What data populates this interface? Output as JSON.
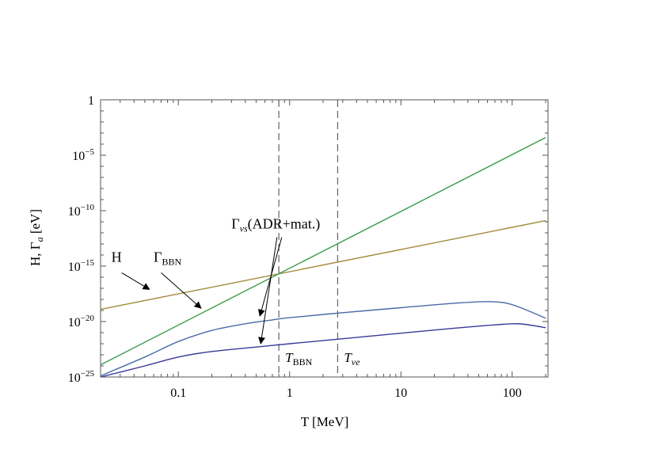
{
  "chart_data": {
    "type": "line",
    "title": "",
    "xlabel": "T [MeV]",
    "ylabel_parts": {
      "main": "H, Γ",
      "sub": "a",
      "tail": " [eV]"
    },
    "xscale": "log",
    "yscale": "log",
    "xlim": [
      0.02,
      210
    ],
    "ylim": [
      1e-25,
      1
    ],
    "x_ticks": [
      {
        "value": 0.1,
        "label": "0.1"
      },
      {
        "value": 1,
        "label": "1"
      },
      {
        "value": 10,
        "label": "10"
      },
      {
        "value": 100,
        "label": "100"
      }
    ],
    "y_ticks": [
      {
        "exp": 0,
        "label": "1",
        "sup": ""
      },
      {
        "exp": -5,
        "label": "10",
        "sup": "−5"
      },
      {
        "exp": -10,
        "label": "10",
        "sup": "−10"
      },
      {
        "exp": -15,
        "label": "10",
        "sup": "−15"
      },
      {
        "exp": -20,
        "label": "10",
        "sup": "−20"
      },
      {
        "exp": -25,
        "label": "10",
        "sup": "−25"
      }
    ],
    "series": [
      {
        "name": "H",
        "color": "#a08a3a",
        "points": [
          [
            0.02,
            -18.9
          ],
          [
            200,
            -10.9
          ]
        ]
      },
      {
        "name": "Γ_BBN",
        "color": "#3a9a4a",
        "points": [
          [
            0.02,
            -23.9
          ],
          [
            200,
            -3.4
          ]
        ]
      },
      {
        "name": "Γ_vs (ADR+mat.) upper",
        "color": "#4a6aa8",
        "points": [
          [
            0.02,
            -24.9
          ],
          [
            0.05,
            -23.2
          ],
          [
            0.1,
            -21.8
          ],
          [
            0.2,
            -20.8
          ],
          [
            0.4,
            -20.2
          ],
          [
            0.7,
            -19.85
          ],
          [
            1,
            -19.65
          ],
          [
            3,
            -19.2
          ],
          [
            10,
            -18.75
          ],
          [
            30,
            -18.35
          ],
          [
            60,
            -18.2
          ],
          [
            90,
            -18.35
          ],
          [
            130,
            -18.9
          ],
          [
            200,
            -19.7
          ]
        ]
      },
      {
        "name": "Γ_vs (ADR+mat.) lower",
        "color": "#3a3a9a",
        "points": [
          [
            0.02,
            -25.0
          ],
          [
            0.05,
            -24.0
          ],
          [
            0.1,
            -23.2
          ],
          [
            0.2,
            -22.7
          ],
          [
            0.5,
            -22.3
          ],
          [
            1,
            -22.0
          ],
          [
            3,
            -21.55
          ],
          [
            10,
            -21.05
          ],
          [
            30,
            -20.6
          ],
          [
            60,
            -20.35
          ],
          [
            100,
            -20.2
          ],
          [
            130,
            -20.25
          ],
          [
            200,
            -20.55
          ]
        ]
      }
    ],
    "vlines": [
      {
        "x": 0.8,
        "label": "T",
        "sub": "BBN"
      },
      {
        "x": 2.7,
        "label": "T",
        "sub": "νe"
      }
    ],
    "annotations": [
      {
        "text": "H",
        "sub": "",
        "x": 0.025,
        "y": -14.6,
        "arrows": [
          {
            "from": [
              0.031,
              -15.6
            ],
            "to": [
              0.055,
              -17.1
            ]
          }
        ]
      },
      {
        "text": "Γ",
        "sub": "BBN",
        "x": 0.06,
        "y": -14.6,
        "arrows": [
          {
            "from": [
              0.07,
              -15.6
            ],
            "to": [
              0.16,
              -18.8
            ]
          }
        ]
      },
      {
        "text": "Γ",
        "sub": "νs",
        "tail": "(ADR+mat.)",
        "x": 0.3,
        "y": -11.6,
        "arrows": [
          {
            "from": [
              0.85,
              -12.4
            ],
            "to": [
              0.54,
              -19.5
            ]
          },
          {
            "from": [
              0.77,
              -12.4
            ],
            "to": [
              0.55,
              -22.0
            ]
          }
        ]
      }
    ]
  }
}
